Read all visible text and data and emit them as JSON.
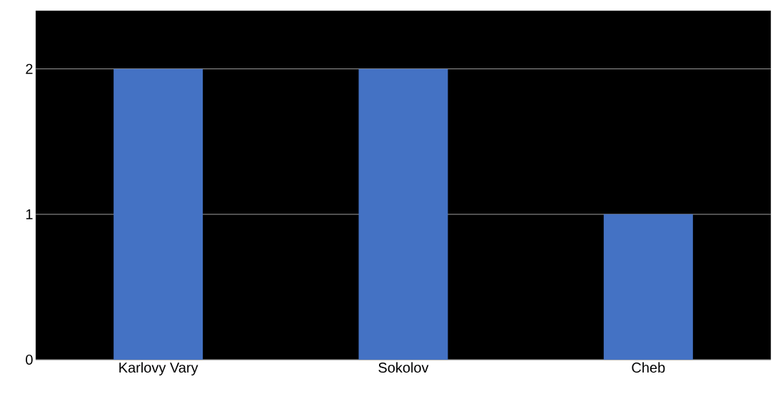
{
  "chart_data": {
    "type": "bar",
    "categories": [
      "Karlovy Vary",
      "Sokolov",
      "Cheb"
    ],
    "values": [
      2,
      2,
      1
    ],
    "color": "#4472c4",
    "ylim": [
      0,
      2.4
    ],
    "yticks": [
      0,
      1,
      2
    ],
    "grid": "y"
  }
}
